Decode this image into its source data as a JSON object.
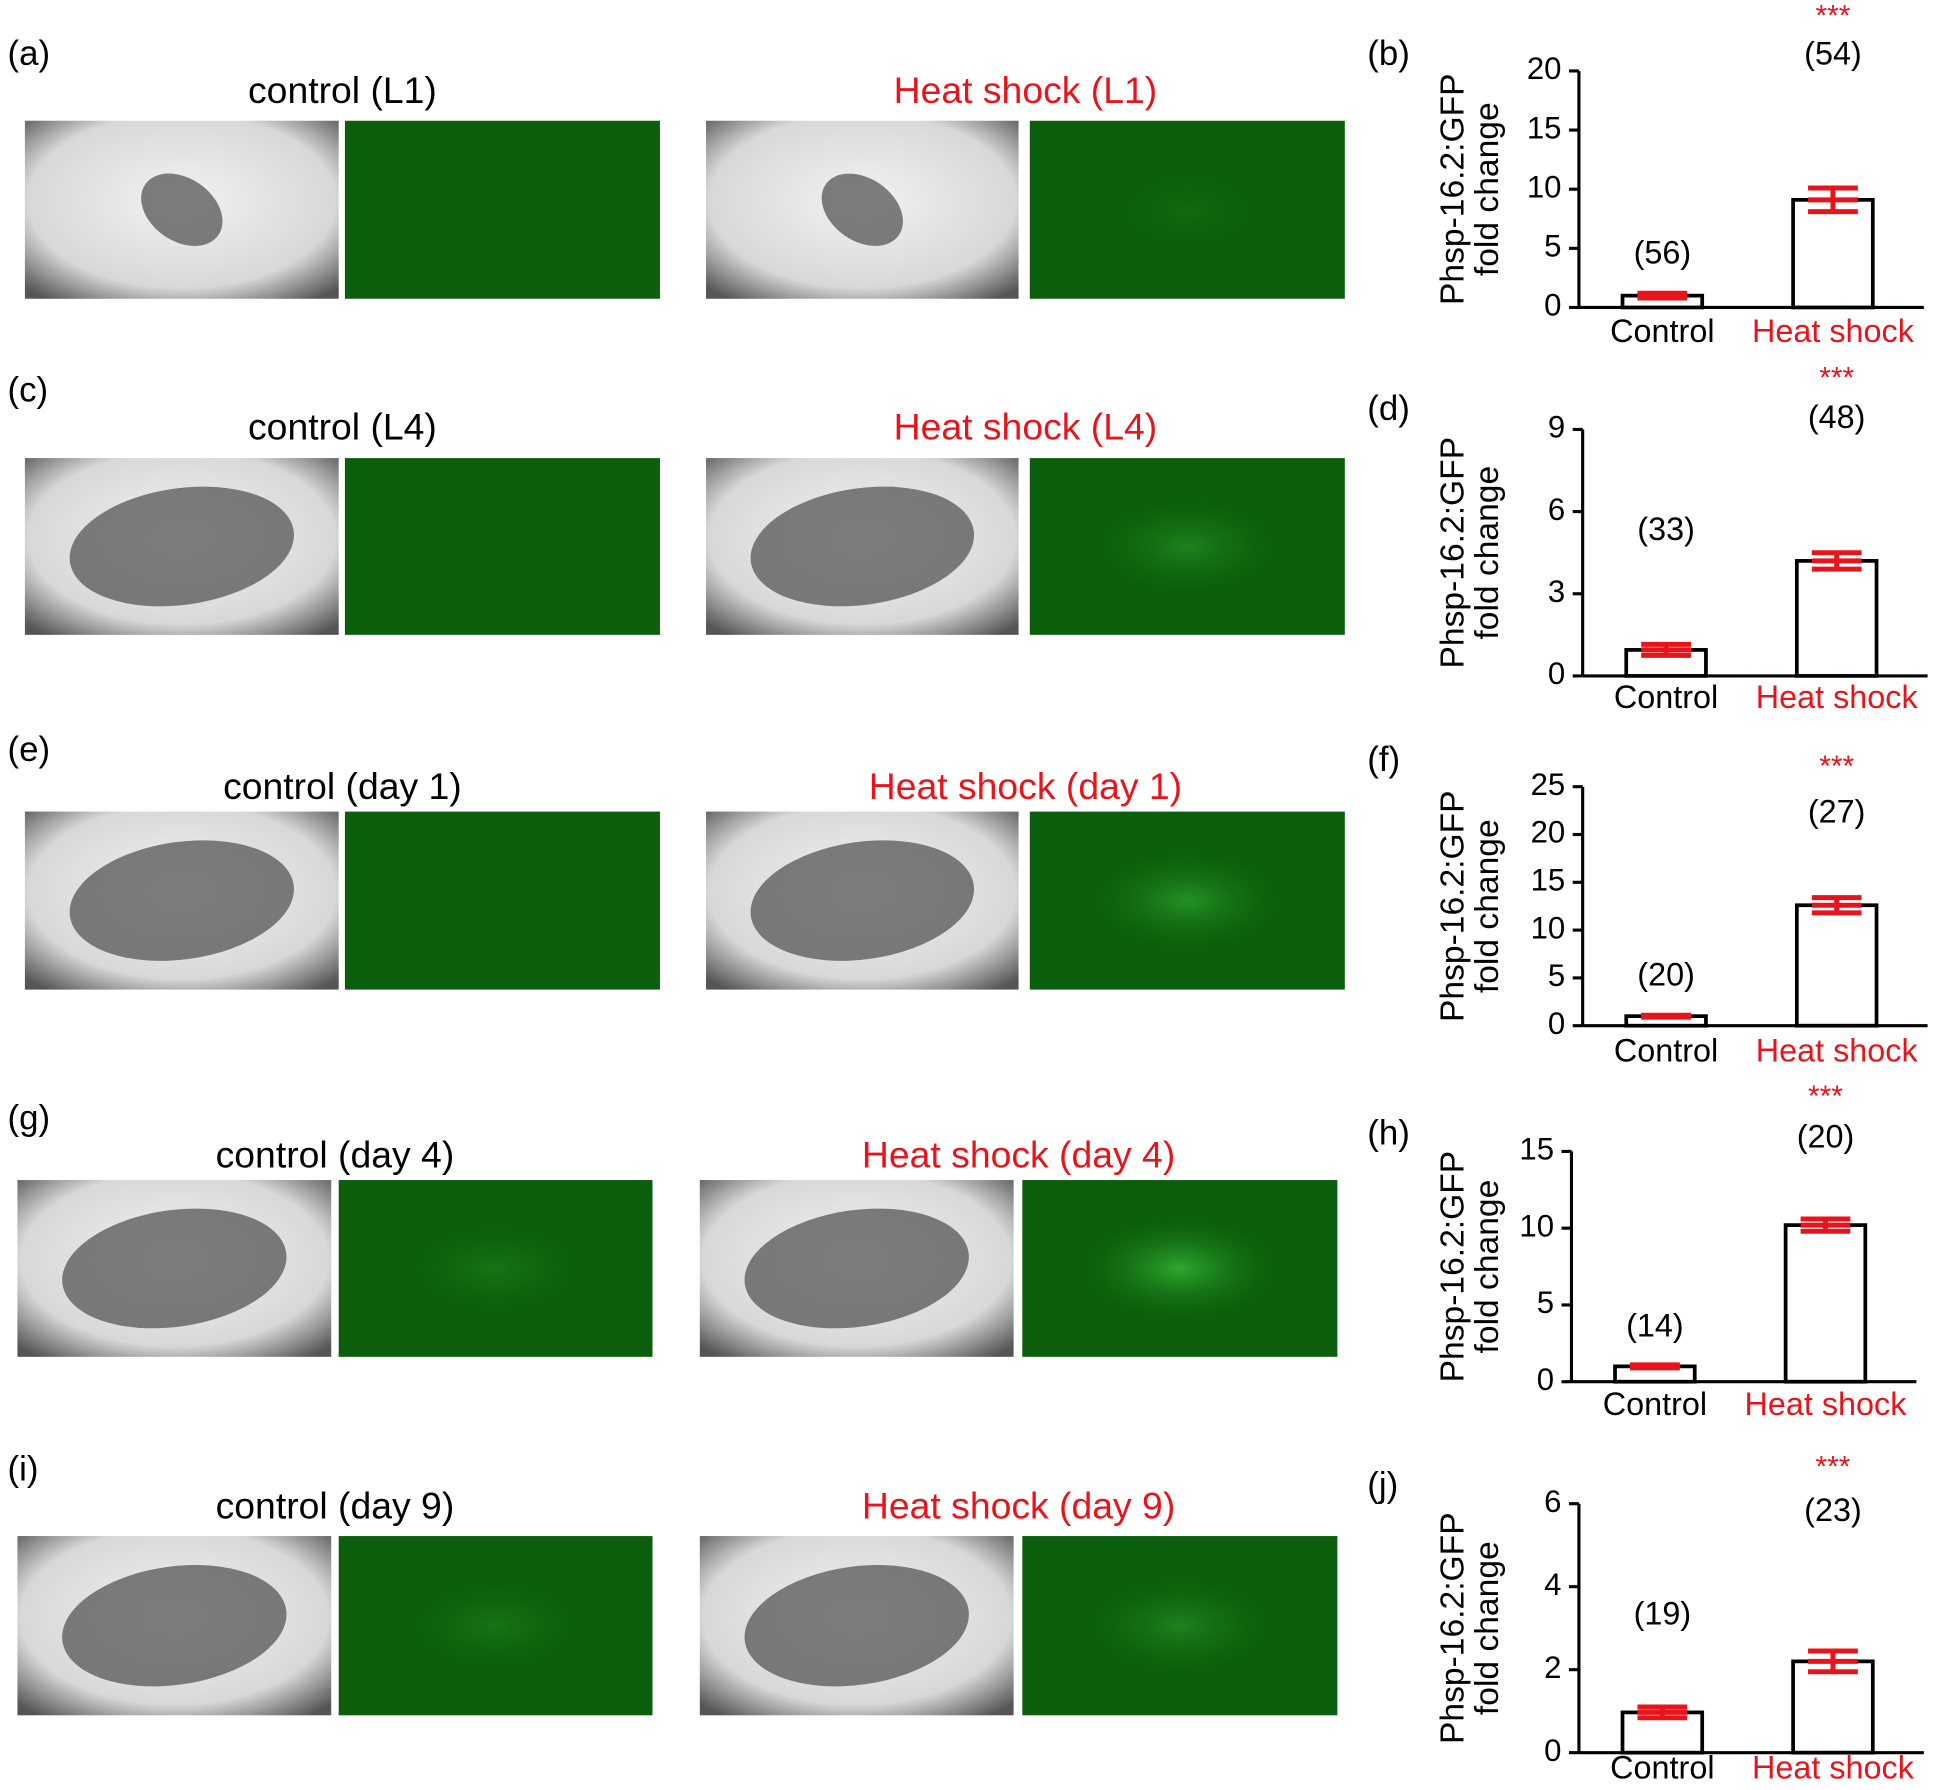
{
  "panels": [
    {
      "label": "(a)",
      "titles": [
        "control (L1)",
        "Heat shock (L1)"
      ]
    },
    {
      "label": "(c)",
      "titles": [
        "control (L4)",
        "Heat shock (L4)"
      ]
    },
    {
      "label": "(e)",
      "titles": [
        "control (day 1)",
        "Heat shock (day 1)"
      ]
    },
    {
      "label": "(g)",
      "titles": [
        "control (day 4)",
        "Heat shock (day 4)"
      ]
    },
    {
      "label": "(i)",
      "titles": [
        "control (day 9)",
        "Heat shock (day 9)"
      ]
    }
  ],
  "chart_data": [
    {
      "type": "bar",
      "panel_label": "(b)",
      "y_label": [
        "Phsp-16.2:GFP",
        "fold change"
      ],
      "categories": [
        "Control",
        "Heat shock"
      ],
      "category_colors": [
        "#000000",
        "#e8141b"
      ],
      "values": [
        1.0,
        9.1
      ],
      "errors": [
        0.2,
        1.0
      ],
      "n_labels": [
        "(56)",
        "(54)"
      ],
      "significance": "***",
      "ylim": [
        0,
        20
      ],
      "yticks": [
        0,
        5,
        10,
        15,
        20
      ],
      "color": "#ffffff",
      "error_color": "#e8141b"
    },
    {
      "type": "bar",
      "panel_label": "(d)",
      "y_label": [
        "Phsp-16.2:GFP",
        "fold change"
      ],
      "categories": [
        "Control",
        "Heat shock"
      ],
      "category_colors": [
        "#000000",
        "#e8141b"
      ],
      "values": [
        0.95,
        4.2
      ],
      "errors": [
        0.2,
        0.3
      ],
      "n_labels": [
        "(33)",
        "(48)"
      ],
      "significance": "***",
      "ylim": [
        0,
        9
      ],
      "yticks": [
        0,
        3,
        6,
        9
      ],
      "color": "#ffffff",
      "error_color": "#e8141b"
    },
    {
      "type": "bar",
      "panel_label": "(f)",
      "y_label": [
        "Phsp-16.2:GFP",
        "fold change"
      ],
      "categories": [
        "Control",
        "Heat shock"
      ],
      "category_colors": [
        "#000000",
        "#e8141b"
      ],
      "values": [
        1.0,
        12.6
      ],
      "errors": [
        0.1,
        0.8
      ],
      "n_labels": [
        "(20)",
        "(27)"
      ],
      "significance": "***",
      "ylim": [
        0,
        25
      ],
      "yticks": [
        0,
        5,
        10,
        15,
        20,
        25
      ],
      "color": "#ffffff",
      "error_color": "#e8141b"
    },
    {
      "type": "bar",
      "panel_label": "(h)",
      "y_label": [
        "Phsp-16.2:GFP",
        "fold change"
      ],
      "categories": [
        "Control",
        "Heat shock"
      ],
      "category_colors": [
        "#000000",
        "#e8141b"
      ],
      "values": [
        1.0,
        10.2
      ],
      "errors": [
        0.1,
        0.4
      ],
      "n_labels": [
        "(14)",
        "(20)"
      ],
      "significance": "***",
      "ylim": [
        0,
        15
      ],
      "yticks": [
        0,
        5,
        10,
        15
      ],
      "color": "#ffffff",
      "error_color": "#e8141b"
    },
    {
      "type": "bar",
      "panel_label": "(j)",
      "y_label": [
        "Phsp-16.2:GFP",
        "fold change"
      ],
      "categories": [
        "Control",
        "Heat shock"
      ],
      "category_colors": [
        "#000000",
        "#e8141b"
      ],
      "values": [
        0.97,
        2.2
      ],
      "errors": [
        0.13,
        0.25
      ],
      "n_labels": [
        "(19)",
        "(23)"
      ],
      "significance": "***",
      "ylim": [
        0,
        6
      ],
      "yticks": [
        0,
        2,
        4,
        6
      ],
      "color": "#ffffff",
      "error_color": "#e8141b"
    }
  ]
}
